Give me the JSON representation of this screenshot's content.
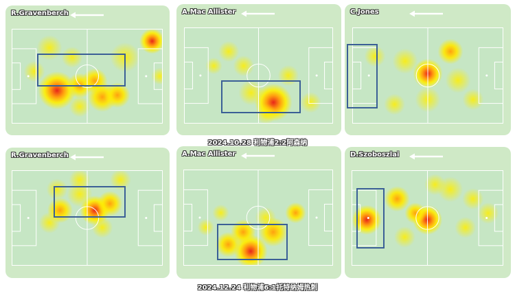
{
  "matches": [
    {
      "caption": "2024.10.28 利物浦2:2阿森纳",
      "players": [
        "R.Gravenberch",
        "A.Mac Allister",
        "C.Jones"
      ]
    },
    {
      "caption": "2024.12.24 利物浦6:1托特纳姆热刺",
      "players": [
        "R.Gravenberch",
        "A.Mac Allister",
        "D.Szoboszlai"
      ]
    }
  ],
  "attack_direction": "left",
  "colors": {
    "panel": "#cfe9c6",
    "pitch": "#c6e6c4",
    "zone_box": "#3a5f96",
    "heat_low": "#ffee00",
    "heat_high": "#e8261a"
  }
}
